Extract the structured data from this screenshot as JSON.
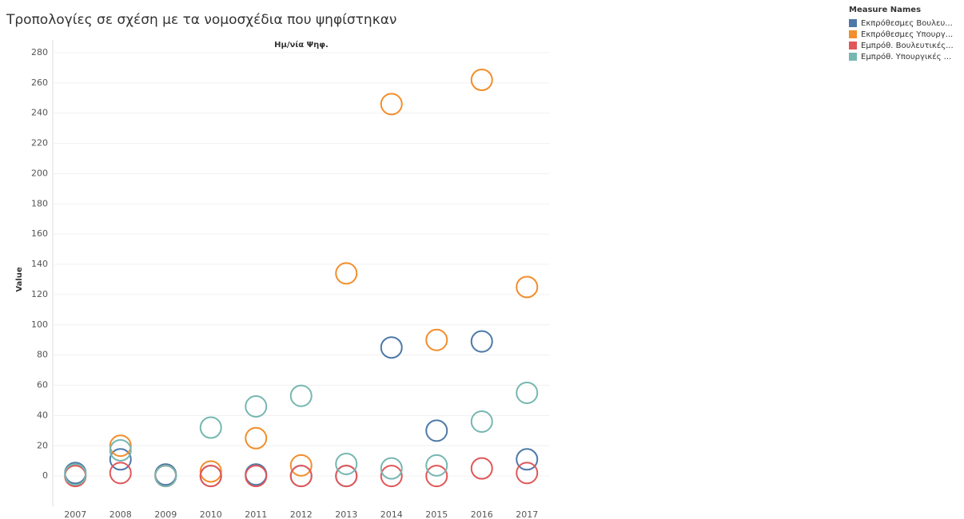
{
  "chart_data": {
    "type": "scatter",
    "title": "Τροπολογίες σε σχέση με τα νομοσχέδια που ψηφίστηκαν",
    "x_header": "Ημ/νία Ψηφ.",
    "y_label": "Value",
    "legend_title": "Measure Names",
    "legend": "top-right",
    "grid": true,
    "categories": [
      "2007",
      "2008",
      "2009",
      "2010",
      "2011",
      "2012",
      "2013",
      "2014",
      "2015",
      "2016",
      "2017"
    ],
    "ylim": [
      -20,
      285
    ],
    "yticks": [
      0,
      20,
      40,
      60,
      80,
      100,
      120,
      140,
      160,
      180,
      200,
      220,
      240,
      260,
      280
    ],
    "series": [
      {
        "name": "Εκπρόθεσμες Βουλευ...",
        "color": "#4e79a7",
        "values": [
          2,
          11,
          1,
          0,
          1,
          0,
          0,
          85,
          30,
          89,
          11
        ]
      },
      {
        "name": "Εκπρόθεσμες Υπουργ...",
        "color": "#f28e2b",
        "values": [
          0,
          20,
          0,
          3,
          25,
          7,
          134,
          246,
          90,
          262,
          125
        ]
      },
      {
        "name": "Εμπρόθ. Βουλευτικές...",
        "color": "#e15759",
        "values": [
          0,
          2,
          0,
          0,
          0,
          0,
          0,
          0,
          0,
          5,
          2
        ]
      },
      {
        "name": "Εμπρόθ. Υπουργικές ...",
        "color": "#76b7b2",
        "values": [
          1,
          17,
          0,
          32,
          46,
          53,
          8,
          5,
          7,
          36,
          55
        ]
      }
    ]
  }
}
